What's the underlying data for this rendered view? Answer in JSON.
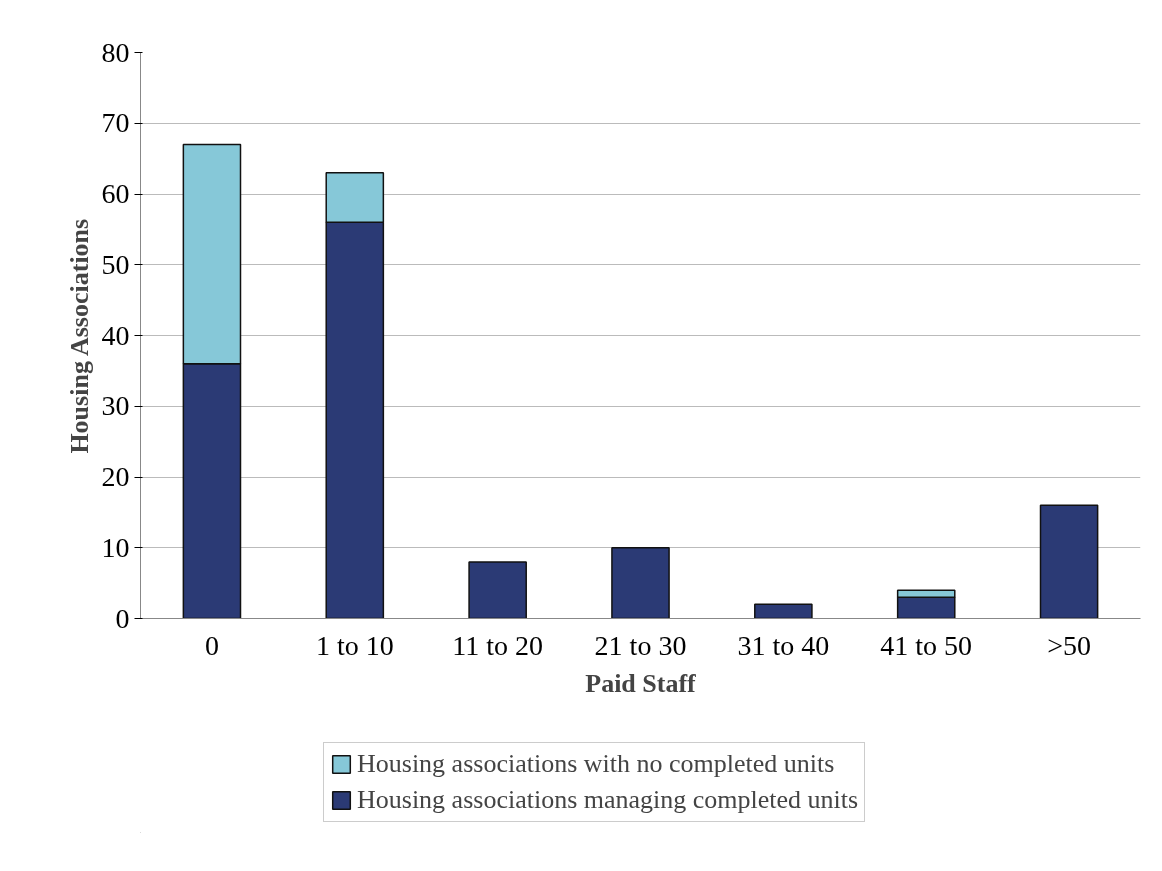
{
  "chart_data": {
    "type": "bar",
    "stacked": true,
    "xlabel": "Paid Staff",
    "ylabel": "Housing Associations",
    "categories": [
      "0",
      "1 to 10",
      "11 to 20",
      "21 to 30",
      "31 to 40",
      "41 to 50",
      ">50"
    ],
    "series": [
      {
        "name": "Housing associations managing completed units",
        "color": "#2b3a75",
        "values": [
          36,
          56,
          8,
          10,
          2,
          3,
          16
        ]
      },
      {
        "name": "Housing associations with no completed units",
        "color": "#86c8d8",
        "values": [
          31,
          7,
          0,
          0,
          0,
          1,
          0
        ]
      }
    ],
    "ylim": [
      0,
      80
    ],
    "yticks": [
      0,
      10,
      20,
      30,
      40,
      50,
      60,
      70,
      80
    ],
    "grid": "y",
    "legend": "bottom"
  }
}
